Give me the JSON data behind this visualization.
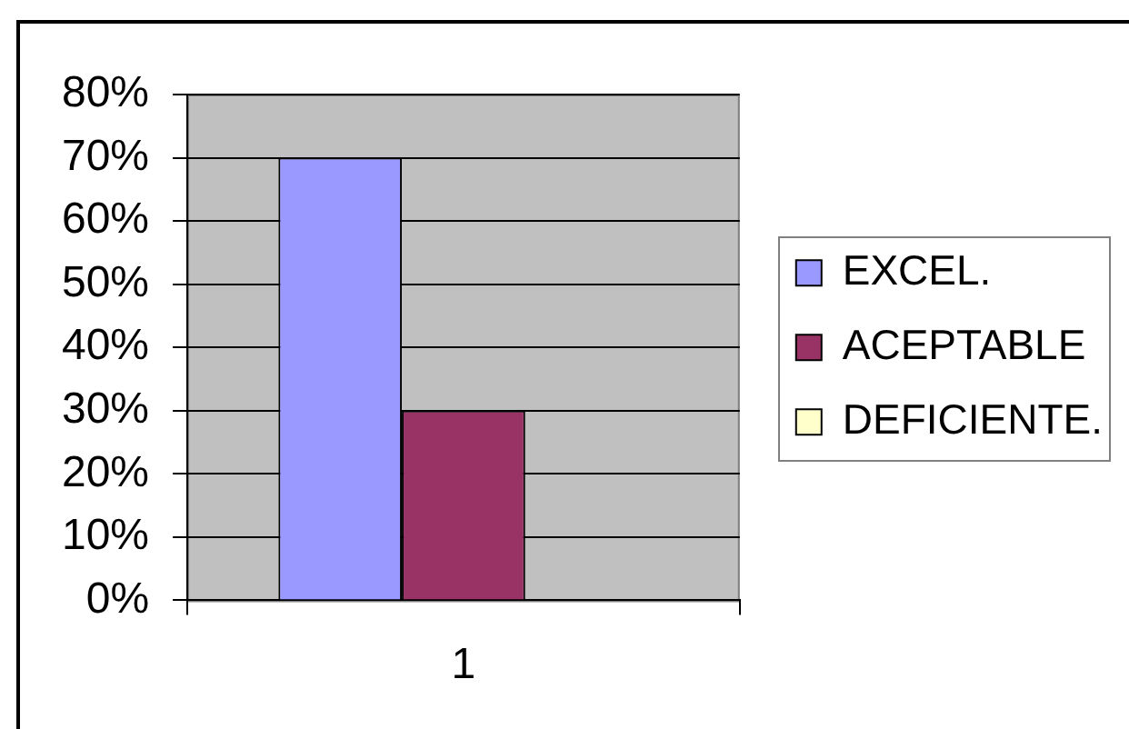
{
  "chart_data": {
    "type": "bar",
    "categories": [
      "1"
    ],
    "series": [
      {
        "name": "EXCEL.",
        "color": "#9999ff",
        "values": [
          70
        ]
      },
      {
        "name": "ACEPTABLE",
        "color": "#993366",
        "values": [
          30
        ]
      },
      {
        "name": "DEFICIENTE.",
        "color": "#ffffcc",
        "values": [
          0
        ]
      }
    ],
    "ylim": [
      0,
      80
    ],
    "yticks": [
      {
        "value": 0,
        "label": "0%"
      },
      {
        "value": 10,
        "label": "10%"
      },
      {
        "value": 20,
        "label": "20%"
      },
      {
        "value": 30,
        "label": "30%"
      },
      {
        "value": 40,
        "label": "40%"
      },
      {
        "value": 50,
        "label": "50%"
      },
      {
        "value": 60,
        "label": "60%"
      },
      {
        "value": 70,
        "label": "70%"
      },
      {
        "value": 80,
        "label": "80%"
      }
    ],
    "grid": "y",
    "legend": "right"
  }
}
